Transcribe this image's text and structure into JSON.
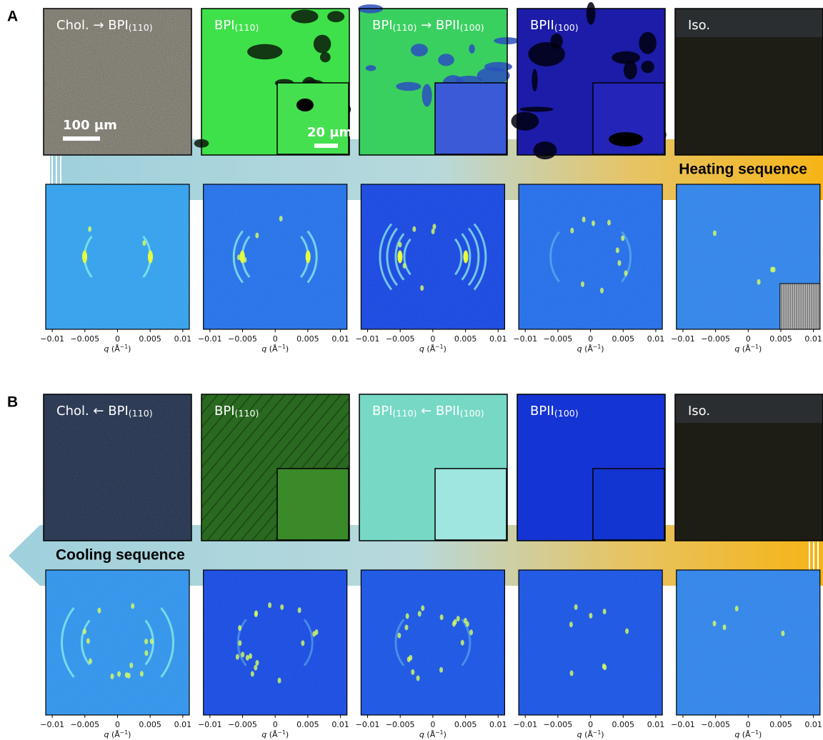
{
  "panels": [
    {
      "letter": "A",
      "sequence": "Heating sequence",
      "micrographs": [
        {
          "label": [
            {
              "text": "Chol. → BPI"
            },
            {
              "text": "(110)",
              "sub": true
            }
          ],
          "scale_bar": "100 µm"
        },
        {
          "label": [
            {
              "text": "BPI"
            },
            {
              "text": "(110)",
              "sub": true
            }
          ],
          "scale_bar": "20 µm"
        },
        {
          "label": [
            {
              "text": "BPI"
            },
            {
              "text": "(110)",
              "sub": true
            },
            {
              "text": " → BPII"
            },
            {
              "text": "(100)",
              "sub": true
            }
          ]
        },
        {
          "label": [
            {
              "text": "BPII"
            },
            {
              "text": "(100)",
              "sub": true
            }
          ]
        },
        {
          "label": [
            {
              "text": "Iso."
            }
          ]
        }
      ]
    },
    {
      "letter": "B",
      "sequence": "Cooling sequence",
      "micrographs": [
        {
          "label": [
            {
              "text": "Chol. ← BPI"
            },
            {
              "text": "(110)",
              "sub": true
            }
          ]
        },
        {
          "label": [
            {
              "text": "BPI"
            },
            {
              "text": "(110)",
              "sub": true
            }
          ]
        },
        {
          "label": [
            {
              "text": "BPI"
            },
            {
              "text": "(110)",
              "sub": true
            },
            {
              "text": " ← BPII"
            },
            {
              "text": "(100)",
              "sub": true
            }
          ]
        },
        {
          "label": [
            {
              "text": "BPII"
            },
            {
              "text": "(100)",
              "sub": true
            }
          ]
        },
        {
          "label": [
            {
              "text": "Iso."
            }
          ]
        }
      ]
    }
  ],
  "axis": {
    "xlim": [
      -0.011,
      0.011
    ],
    "xticks": [
      {
        "value": -0.01,
        "label": "−0.01"
      },
      {
        "value": -0.005,
        "label": "−0.005"
      },
      0,
      0.005,
      0.01
    ],
    "label": [
      {
        "text": "q",
        "italic": true
      },
      {
        "text": " (Å"
      },
      {
        "text": "−1",
        "sup": true
      },
      {
        "text": ")"
      }
    ]
  }
}
